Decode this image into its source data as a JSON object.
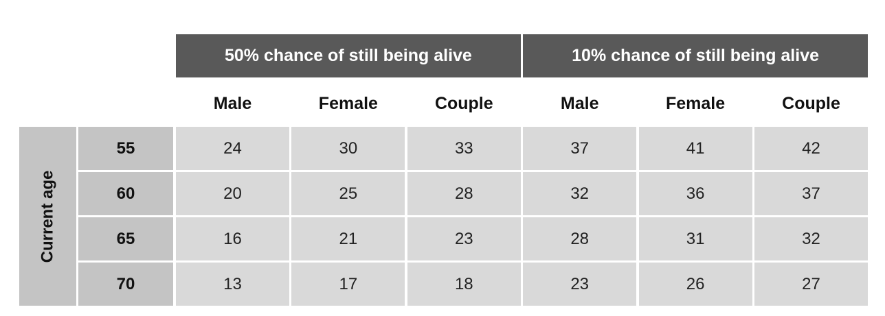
{
  "table": {
    "groups": [
      "50% chance of still being alive",
      "10% chance of still being alive"
    ],
    "columns": [
      "Male",
      "Female",
      "Couple",
      "Male",
      "Female",
      "Couple"
    ],
    "row_header": "Current age",
    "rows": [
      {
        "age": 55,
        "values": [
          24,
          30,
          33,
          37,
          41,
          42
        ]
      },
      {
        "age": 60,
        "values": [
          20,
          25,
          28,
          32,
          36,
          37
        ]
      },
      {
        "age": 65,
        "values": [
          16,
          21,
          23,
          28,
          31,
          32
        ]
      },
      {
        "age": 70,
        "values": [
          13,
          17,
          18,
          23,
          26,
          27
        ]
      }
    ]
  }
}
